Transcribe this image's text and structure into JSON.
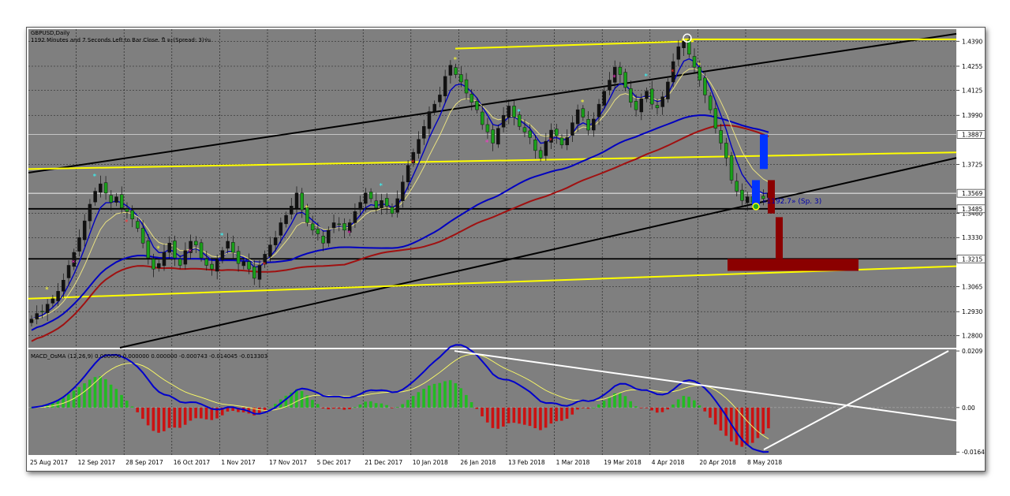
{
  "header": {
    "symbol_line": "GBPUSD,Daily",
    "countdown_line": "1192 Minutes and 7 Seconds Left to Bar Close. ปี จะ(Spread: 3)ร่น"
  },
  "annotation": {
    "countdown_label": "«1192.7» (Sp. 3)"
  },
  "colors": {
    "panel_bg": "#7f7f7f",
    "axis_bg": "#ffffff",
    "grid": "#1a1a1a",
    "trend_black": "#000000",
    "trend_yellow": "#ffff00",
    "ma_blue": "#0000c0",
    "ma_red": "#a01010",
    "macd_line": "#0000cc",
    "signal_line": "#ffff66",
    "hist_up": "#22bb22",
    "hist_down": "#cc1111",
    "target_blue": "#0033ff",
    "target_red": "#8b0000"
  },
  "chart_data": [
    {
      "type": "candlestick",
      "title": "GBPUSD,Daily",
      "xlabel": "",
      "ylabel": "",
      "ylim": [
        1.2735,
        1.4455
      ],
      "y_ticks": [
        "1.4390",
        "1.4255",
        "1.4125",
        "1.3990",
        "1.3725",
        "1.3460",
        "1.3330",
        "1.3065",
        "1.2930",
        "1.2800"
      ],
      "highlighted_levels": [
        "1.3887",
        "1.3569",
        "1.3485",
        "1.3215"
      ],
      "x_ticks": [
        "25 Aug 2017",
        "12 Sep 2017",
        "28 Sep 2017",
        "16 Oct 2017",
        "1 Nov 2017",
        "17 Nov 2017",
        "5 Dec 2017",
        "21 Dec 2017",
        "10 Jan 2018",
        "26 Jan 2018",
        "13 Feb 2018",
        "1 Mar 2018",
        "19 Mar 2018",
        "4 Apr 2018",
        "20 Apr 2018",
        "8 May 2018"
      ],
      "close_series": [
        1.289,
        1.292,
        1.293,
        1.297,
        1.3,
        1.304,
        1.31,
        1.318,
        1.325,
        1.333,
        1.342,
        1.351,
        1.358,
        1.362,
        1.357,
        1.352,
        1.355,
        1.349,
        1.347,
        1.343,
        1.338,
        1.33,
        1.322,
        1.316,
        1.319,
        1.325,
        1.33,
        1.322,
        1.318,
        1.326,
        1.331,
        1.329,
        1.322,
        1.318,
        1.316,
        1.321,
        1.326,
        1.331,
        1.325,
        1.319,
        1.32,
        1.316,
        1.311,
        1.318,
        1.324,
        1.329,
        1.333,
        1.341,
        1.345,
        1.35,
        1.357,
        1.348,
        1.341,
        1.337,
        1.335,
        1.33,
        1.337,
        1.341,
        1.34,
        1.337,
        1.341,
        1.347,
        1.352,
        1.357,
        1.354,
        1.349,
        1.353,
        1.35,
        1.346,
        1.354,
        1.363,
        1.372,
        1.379,
        1.386,
        1.393,
        1.401,
        1.405,
        1.41,
        1.42,
        1.426,
        1.421,
        1.417,
        1.411,
        1.406,
        1.402,
        1.394,
        1.39,
        1.384,
        1.392,
        1.399,
        1.404,
        1.398,
        1.393,
        1.39,
        1.387,
        1.38,
        1.376,
        1.385,
        1.391,
        1.388,
        1.383,
        1.387,
        1.395,
        1.402,
        1.398,
        1.391,
        1.397,
        1.405,
        1.412,
        1.418,
        1.425,
        1.421,
        1.414,
        1.406,
        1.402,
        1.408,
        1.412,
        1.405,
        1.403,
        1.409,
        1.417,
        1.428,
        1.436,
        1.439,
        1.432,
        1.425,
        1.418,
        1.41,
        1.402,
        1.392,
        1.384,
        1.376,
        1.364,
        1.358,
        1.353,
        1.355,
        1.352,
        1.356,
        1.354,
        1.357
      ],
      "moving_averages": [
        "fast (yellow)",
        "medium (blue)",
        "slow 1 (blue)",
        "slow 2 (red)"
      ]
    },
    {
      "type": "macd_histogram",
      "title": "MACD_OsMA (12,26,9) 0.000000 0.000000 0.000000 -0.000743 -0.014045 -0.013303",
      "ylim": [
        -0.0175,
        0.0215
      ],
      "y_ticks": [
        "0.0209",
        "0.00",
        "-0.01640"
      ],
      "params": [
        12,
        26,
        9
      ],
      "values": [
        0.0,
        0.0,
        0.0,
        -0.000743,
        -0.014045,
        -0.013303
      ]
    }
  ]
}
